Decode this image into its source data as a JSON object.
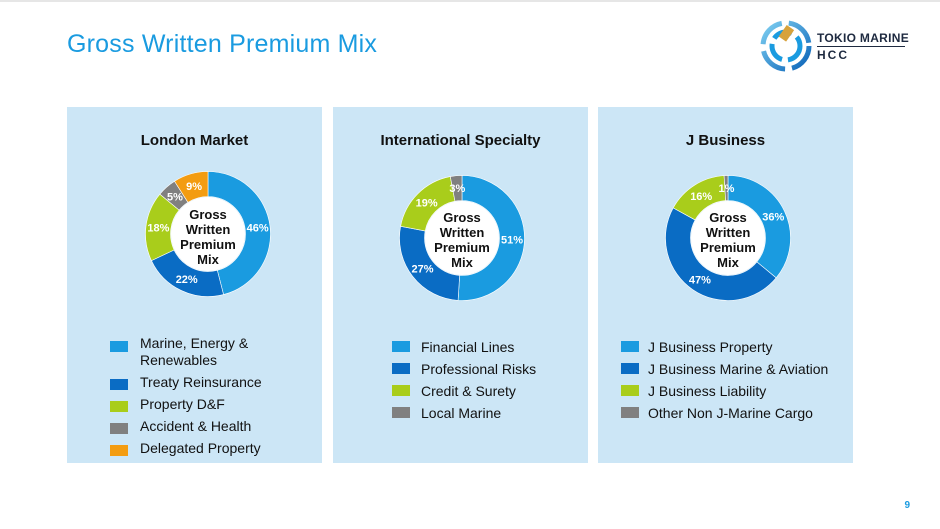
{
  "page": {
    "title": "Gross Written Premium Mix",
    "page_number": "9",
    "logo": {
      "line1": "TOKIO MARINE",
      "line2": "HCC"
    }
  },
  "colors": {
    "title": "#1a9be0",
    "panel_bg": "#cce6f6",
    "light_blue": "#1a9be0",
    "dark_blue": "#0a6cc4",
    "lime": "#a9cd1b",
    "gray": "#808080",
    "orange": "#f39c11"
  },
  "chart_data": [
    {
      "type": "pie",
      "title": "London Market",
      "center_label": [
        "Gross",
        "Written",
        "Premium",
        "Mix"
      ],
      "slices": [
        {
          "name": "Marine, Energy & Renewables",
          "value": 46,
          "label": "46%",
          "color": "#1a9be0"
        },
        {
          "name": "Treaty Reinsurance",
          "value": 22,
          "label": "22%",
          "color": "#0a6cc4"
        },
        {
          "name": "Property D&F",
          "value": 18,
          "label": "18%",
          "color": "#a9cd1b"
        },
        {
          "name": "Accident & Health",
          "value": 5,
          "label": "5%",
          "color": "#808080"
        },
        {
          "name": "Delegated Property",
          "value": 9,
          "label": "9%",
          "color": "#f39c11"
        }
      ],
      "legend": [
        "Marine, Energy &\nRenewables",
        "Treaty Reinsurance",
        "Property D&F",
        "Accident & Health",
        "Delegated Property"
      ]
    },
    {
      "type": "pie",
      "title": "International Specialty",
      "center_label": [
        "Gross",
        "Written",
        "Premium",
        "Mix"
      ],
      "slices": [
        {
          "name": "Financial Lines",
          "value": 51,
          "label": "51%",
          "color": "#1a9be0"
        },
        {
          "name": "Professional Risks",
          "value": 27,
          "label": "27%",
          "color": "#0a6cc4"
        },
        {
          "name": "Credit & Surety",
          "value": 19,
          "label": "19%",
          "color": "#a9cd1b"
        },
        {
          "name": "Local Marine",
          "value": 3,
          "label": "3%",
          "color": "#808080"
        }
      ],
      "legend": [
        "Financial Lines",
        "Professional Risks",
        "Credit & Surety",
        "Local Marine"
      ]
    },
    {
      "type": "pie",
      "title": "J Business",
      "center_label": [
        "Gross",
        "Written",
        "Premium",
        "Mix"
      ],
      "slices": [
        {
          "name": "J Business Property",
          "value": 36,
          "label": "36%",
          "color": "#1a9be0"
        },
        {
          "name": "J Business Marine & Aviation",
          "value": 47,
          "label": "47%",
          "color": "#0a6cc4"
        },
        {
          "name": "J Business Liability",
          "value": 16,
          "label": "16%",
          "color": "#a9cd1b"
        },
        {
          "name": "Other Non J-Marine Cargo",
          "value": 1,
          "label": "1%",
          "color": "#808080"
        }
      ],
      "legend": [
        "J Business Property",
        "J Business Marine & Aviation",
        "J Business Liability",
        "Other Non J-Marine Cargo"
      ]
    }
  ]
}
